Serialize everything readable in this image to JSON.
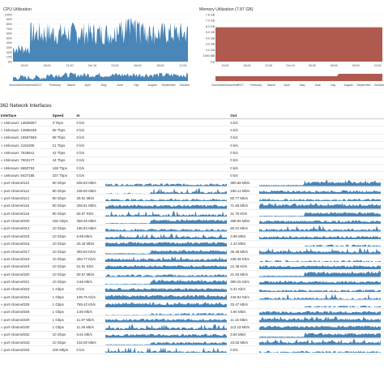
{
  "cpu": {
    "title": "CPU Utilization",
    "y_ticks": [
      "100%",
      "90%",
      "80%",
      "70%",
      "60%",
      "50%",
      "40%",
      "30%",
      "20%",
      "10%",
      "0%"
    ],
    "x_ticks_top": [
      "15:00",
      "18:00",
      "21:00",
      "Oct 10",
      "03:00",
      "06:00",
      "09:00",
      "12:00"
    ],
    "x_ticks_bottom": [
      "NovemberDecember",
      "2017",
      "February",
      "March",
      "April",
      "May",
      "June",
      "July",
      "August",
      "September",
      "October"
    ],
    "color": "#4a86b8"
  },
  "memory": {
    "title": "Memory Utilization (7.87 GB)",
    "y_ticks": [
      "7.8 GB",
      "7.0 GB",
      "6.0 GB",
      "5.0 GB",
      "4.0 GB",
      "3.0 GB",
      "2.0 GB",
      "1000 MB",
      "0 B"
    ],
    "x_ticks_top": [
      "15:00",
      "18:00",
      "21:00",
      "Oct 10",
      "03:00",
      "06:00",
      "09:00",
      "12:00"
    ],
    "x_ticks_bottom": [
      "NovemberDecember",
      "2017",
      "February",
      "March",
      "April",
      "May",
      "June",
      "July",
      "August",
      "September",
      "October"
    ],
    "color": "#b05a4f"
  },
  "interfaces": {
    "title": "362 Network Interfaces",
    "headers": {
      "interface": "Interface",
      "speed": "Speed",
      "in": "In",
      "out": "Out"
    },
    "graph_color": "#4a86b8",
    "rows": [
      {
        "name": "» Unknown: 13828097",
        "speed": "3 Tbps",
        "in": "0 b/s",
        "out": "0 b/s",
        "graph": false
      },
      {
        "name": "» Unknown: 13959169",
        "speed": "55 Tbps",
        "in": "0 b/s",
        "out": "0 b/s",
        "graph": false
      },
      {
        "name": "» Unknown: 15597569",
        "speed": "88 Tbps",
        "in": "0 b/s",
        "out": "0 b/s",
        "graph": false
      },
      {
        "name": "» Unknown: 4194305",
        "speed": "21 Tbps",
        "in": "0 b/s",
        "out": "0 b/s",
        "graph": false
      },
      {
        "name": "» Unknown: 7536641",
        "speed": "42 Tbps",
        "in": "0 b/s",
        "out": "0 b/s",
        "graph": false
      },
      {
        "name": "» Unknown: 7602177",
        "speed": "44 Tbps",
        "in": "0 b/s",
        "out": "0 b/s",
        "graph": false
      },
      {
        "name": "» Unknown: 8650753",
        "speed": "169 Tbps",
        "in": "0 b/s",
        "out": "0 b/s",
        "graph": false
      },
      {
        "name": "» Unknown: 9437185",
        "speed": "337 Tbps",
        "in": "0 b/s",
        "out": "0 b/s",
        "graph": false
      },
      {
        "name": "» port-channel110",
        "speed": "80 Gbps",
        "in": "635.83 Mb/s",
        "out": "380.68 Mb/s",
        "graph": true
      },
      {
        "name": "» port-channel112",
        "speed": "80 Gbps",
        "in": "238.60 Mb/s",
        "out": "189.12 Mb/s",
        "graph": true
      },
      {
        "name": "» port-channel114",
        "speed": "80 Gbps",
        "in": "29.91 Mb/s",
        "out": "60.77 Mb/s",
        "graph": true
      },
      {
        "name": "» port-channel116",
        "speed": "80 Gbps",
        "in": "256.91 Mb/s",
        "out": "71.68 Mb/s",
        "graph": true
      },
      {
        "name": "» port-channel118",
        "speed": "80 Gbps",
        "in": "50.57 Kb/s",
        "out": "41.76 Kb/s",
        "graph": true
      },
      {
        "name": "» port-channel200",
        "speed": "150 Gbps",
        "in": "359.26 Mb/s",
        "out": "488.95 Mb/s",
        "graph": true
      },
      {
        "name": "» port-channel314",
        "speed": "10 Gbps",
        "in": "180.84 Mb/s",
        "out": "80.01 Mb/s",
        "graph": true
      },
      {
        "name": "» port-channel315",
        "speed": "10 Gbps",
        "in": "5.89 Mb/s",
        "out": "3.89 Mb/s",
        "graph": true
      },
      {
        "name": "» port-channel316",
        "speed": "10 Gbps",
        "in": "20.18 Mb/s",
        "out": "1.24 Mb/s",
        "graph": true
      },
      {
        "name": "» port-channel317",
        "speed": "10 Gbps",
        "in": "393.60 Kb/s",
        "out": "36.48 Mb/s",
        "graph": true
      },
      {
        "name": "» port-channel318",
        "speed": "10 Gbps",
        "in": "403.77 Kb/s",
        "out": "238.48 Kb/s",
        "graph": true
      },
      {
        "name": "» port-channel319",
        "speed": "10 Gbps",
        "in": "51.91 Kb/s",
        "out": "21.48 Kb/s",
        "graph": true
      },
      {
        "name": "» port-channel320",
        "speed": "10 Gbps",
        "in": "60.57 Mb/s",
        "out": "21.93 Mb/s",
        "graph": true
      },
      {
        "name": "» port-channel321",
        "speed": "10 Gbps",
        "in": "3.66 Mb/s",
        "out": "380.25 Kb/s",
        "graph": true
      },
      {
        "name": "» port-channel323",
        "speed": "1 Gbps",
        "in": "0 b/s",
        "out": "5.31 Kb/s",
        "graph": true
      },
      {
        "name": "» port-channel324",
        "speed": "1 Gbps",
        "in": "109.75 Kb/s",
        "out": "448.84 Kb/s",
        "graph": true
      },
      {
        "name": "» port-channel325",
        "speed": "1 Gbps",
        "in": "769.42 Kb/s",
        "out": "33.47 Mb/s",
        "graph": true
      },
      {
        "name": "» port-channel326",
        "speed": "1 Gbps",
        "in": "2.80 Mb/s",
        "out": "4.90 Mb/s",
        "graph": true
      },
      {
        "name": "» port-channel329",
        "speed": "1 Gbps",
        "in": "11.97 Mb/s",
        "out": "11.15 Mb/s",
        "graph": true
      },
      {
        "name": "» port-channel330",
        "speed": "1 Gbps",
        "in": "11.46 Mb/s",
        "out": "113.23 Mb/s",
        "graph": true
      },
      {
        "name": "» port-channel332",
        "speed": "10 Gbps",
        "in": "5.61 Mb/s",
        "out": "3.60 Mb/s",
        "graph": true
      },
      {
        "name": "» port-channel333",
        "speed": "10 Gbps",
        "in": "102.00 Mb/s",
        "out": "23.83 Mb/s",
        "graph": true
      },
      {
        "name": "» port-channel334",
        "speed": "100 Mbps",
        "in": "0 b/s",
        "out": "0 b/s",
        "graph": true
      }
    ]
  }
}
